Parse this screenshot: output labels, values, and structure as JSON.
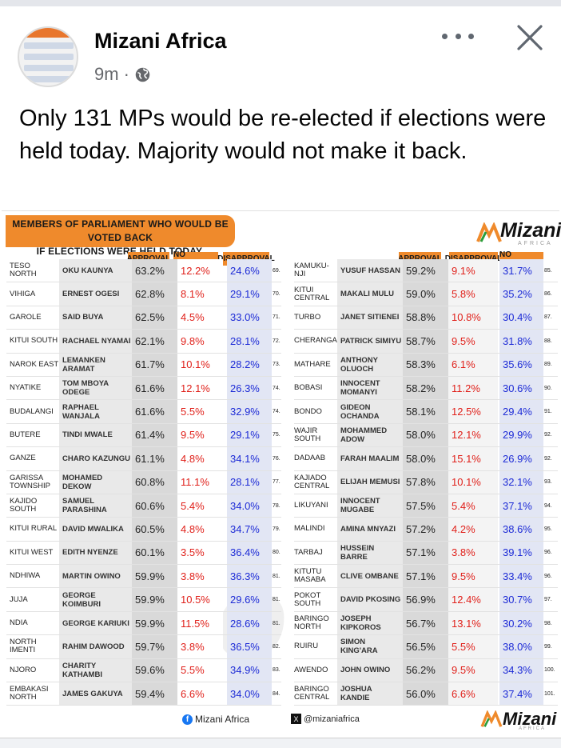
{
  "post": {
    "author": "Mizani Africa",
    "time": "9m",
    "dot": "·",
    "text": "Only 131 MPs would be re-elected if elections were held today. Majority would not make it back.",
    "icons": {
      "more": "more-options-icon",
      "close": "close-icon",
      "audience": "globe-icon"
    }
  },
  "graphic": {
    "banner_line1": "MEMBERS OF PARLIAMENT WHO WOULD BE VOTED BACK",
    "banner_line2": "IF ELECTIONS WERE HELD TODAY.",
    "brand": "Mizani",
    "brand_sub": "AFRICA",
    "left_headers": [
      "APPROVAL",
      "NO OPINION",
      "DISAPPROVAL"
    ],
    "right_headers": [
      "APPROVAL",
      "DISAPPROVAL",
      "NO OPINION"
    ],
    "footer_fb": "Mizani Africa",
    "footer_x": "@mizaniafrica",
    "colors": {
      "orange": "#ef8a2c",
      "red": "#e0211b",
      "blue": "#1d2bd6"
    }
  },
  "left_rows": [
    {
      "area": "TESO NORTH",
      "mp": "OKU KAUNYA",
      "v1": "63.2%",
      "v2": "12.2%",
      "v3": "24.6%",
      "rank": "69."
    },
    {
      "area": "VIHIGA",
      "mp": "ERNEST OGESI",
      "v1": "62.8%",
      "v2": "8.1%",
      "v3": "29.1%",
      "rank": "70."
    },
    {
      "area": "GAROLE",
      "mp": "SAID BUYA",
      "v1": "62.5%",
      "v2": "4.5%",
      "v3": "33.0%",
      "rank": "71."
    },
    {
      "area": "KITUI SOUTH",
      "mp": "RACHAEL NYAMAI",
      "v1": "62.1%",
      "v2": "9.8%",
      "v3": "28.1%",
      "rank": "72."
    },
    {
      "area": "NAROK EAST",
      "mp": "LEMANKEN ARAMAT",
      "v1": "61.7%",
      "v2": "10.1%",
      "v3": "28.2%",
      "rank": "73."
    },
    {
      "area": "NYATIKE",
      "mp": "TOM MBOYA ODEGE",
      "v1": "61.6%",
      "v2": "12.1%",
      "v3": "26.3%",
      "rank": "74."
    },
    {
      "area": "BUDALANGI",
      "mp": "RAPHAEL WANJALA",
      "v1": "61.6%",
      "v2": "5.5%",
      "v3": "32.9%",
      "rank": "74."
    },
    {
      "area": "BUTERE",
      "mp": "TINDI MWALE",
      "v1": "61.4%",
      "v2": "9.5%",
      "v3": "29.1%",
      "rank": "75."
    },
    {
      "area": "GANZE",
      "mp": "CHARO KAZUNGU",
      "v1": "61.1%",
      "v2": "4.8%",
      "v3": "34.1%",
      "rank": "76."
    },
    {
      "area": "GARISSA TOWNSHIP",
      "mp": "MOHAMED DEKOW",
      "v1": "60.8%",
      "v2": "11.1%",
      "v3": "28.1%",
      "rank": "77."
    },
    {
      "area": "KAJIDO SOUTH",
      "mp": "SAMUEL PARASHINA",
      "v1": "60.6%",
      "v2": "5.4%",
      "v3": "34.0%",
      "rank": "78."
    },
    {
      "area": "KITUI RURAL",
      "mp": "DAVID MWALIKA",
      "v1": "60.5%",
      "v2": "4.8%",
      "v3": "34.7%",
      "rank": "79."
    },
    {
      "area": "KITUI WEST",
      "mp": "EDITH NYENZE",
      "v1": "60.1%",
      "v2": "3.5%",
      "v3": "36.4%",
      "rank": "80."
    },
    {
      "area": "NDHIWA",
      "mp": "MARTIN OWINO",
      "v1": "59.9%",
      "v2": "3.8%",
      "v3": "36.3%",
      "rank": "81."
    },
    {
      "area": "JUJA",
      "mp": "GEORGE KOIMBURI",
      "v1": "59.9%",
      "v2": "10.5%",
      "v3": "29.6%",
      "rank": "81."
    },
    {
      "area": "NDIA",
      "mp": "GEORGE KARIUKI",
      "v1": "59.9%",
      "v2": "11.5%",
      "v3": "28.6%",
      "rank": "81."
    },
    {
      "area": "NORTH IMENTI",
      "mp": "RAHIM DAWOOD",
      "v1": "59.7%",
      "v2": "3.8%",
      "v3": "36.5%",
      "rank": "82."
    },
    {
      "area": "NJORO",
      "mp": "CHARITY KATHAMBI",
      "v1": "59.6%",
      "v2": "5.5%",
      "v3": "34.9%",
      "rank": "83."
    },
    {
      "area": "EMBAKASI NORTH",
      "mp": "JAMES GAKUYA",
      "v1": "59.4%",
      "v2": "6.6%",
      "v3": "34.0%",
      "rank": "84."
    }
  ],
  "right_rows": [
    {
      "area": "KAMUKU-NJI",
      "mp": "YUSUF HASSAN",
      "v1": "59.2%",
      "v2": "9.1%",
      "v3": "31.7%",
      "rank": "85."
    },
    {
      "area": "KITUI CENTRAL",
      "mp": "MAKALI MULU",
      "v1": "59.0%",
      "v2": "5.8%",
      "v3": "35.2%",
      "rank": "86."
    },
    {
      "area": "TURBO",
      "mp": "JANET SITIENEI",
      "v1": "58.8%",
      "v2": "10.8%",
      "v3": "30.4%",
      "rank": "87."
    },
    {
      "area": "CHERANGANY",
      "mp": "PATRICK SIMIYU",
      "v1": "58.7%",
      "v2": "9.5%",
      "v3": "31.8%",
      "rank": "88."
    },
    {
      "area": "MATHARE",
      "mp": "ANTHONY OLUOCH",
      "v1": "58.3%",
      "v2": "6.1%",
      "v3": "35.6%",
      "rank": "89."
    },
    {
      "area": "BOBASI",
      "mp": "INNOCENT MOMANYI",
      "v1": "58.2%",
      "v2": "11.2%",
      "v3": "30.6%",
      "rank": "90."
    },
    {
      "area": "BONDO",
      "mp": "GIDEON OCHANDA",
      "v1": "58.1%",
      "v2": "12.5%",
      "v3": "29.4%",
      "rank": "91."
    },
    {
      "area": "WAJIR SOUTH",
      "mp": "MOHAMMED ADOW",
      "v1": "58.0%",
      "v2": "12.1%",
      "v3": "29.9%",
      "rank": "92."
    },
    {
      "area": "DADAAB",
      "mp": "FARAH MAALIM",
      "v1": "58.0%",
      "v2": "15.1%",
      "v3": "26.9%",
      "rank": "92."
    },
    {
      "area": "KAJIADO CENTRAL",
      "mp": "ELIJAH MEMUSI",
      "v1": "57.8%",
      "v2": "10.1%",
      "v3": "32.1%",
      "rank": "93."
    },
    {
      "area": "LIKUYANI",
      "mp": "INNOCENT MUGABE",
      "v1": "57.5%",
      "v2": "5.4%",
      "v3": "37.1%",
      "rank": "94."
    },
    {
      "area": "MALINDI",
      "mp": "AMINA MNYAZI",
      "v1": "57.2%",
      "v2": "4.2%",
      "v3": "38.6%",
      "rank": "95."
    },
    {
      "area": "TARBAJ",
      "mp": "HUSSEIN BARRE",
      "v1": "57.1%",
      "v2": "3.8%",
      "v3": "39.1%",
      "rank": "96."
    },
    {
      "area": "KITUTU MASABA",
      "mp": "CLIVE OMBANE",
      "v1": "57.1%",
      "v2": "9.5%",
      "v3": "33.4%",
      "rank": "96."
    },
    {
      "area": "POKOT SOUTH",
      "mp": "DAVID PKOSING",
      "v1": "56.9%",
      "v2": "12.4%",
      "v3": "30.7%",
      "rank": "97."
    },
    {
      "area": "BARINGO NORTH",
      "mp": "JOSEPH KIPKOROS",
      "v1": "56.7%",
      "v2": "13.1%",
      "v3": "30.2%",
      "rank": "98."
    },
    {
      "area": "RUIRU",
      "mp": "SIMON KING'ARA",
      "v1": "56.5%",
      "v2": "5.5%",
      "v3": "38.0%",
      "rank": "99."
    },
    {
      "area": "AWENDO",
      "mp": "JOHN OWINO",
      "v1": "56.2%",
      "v2": "9.5%",
      "v3": "34.3%",
      "rank": "100."
    },
    {
      "area": "BARINGO CENTRAL",
      "mp": "JOSHUA KANDIE",
      "v1": "56.0%",
      "v2": "6.6%",
      "v3": "37.4%",
      "rank": "101."
    }
  ]
}
